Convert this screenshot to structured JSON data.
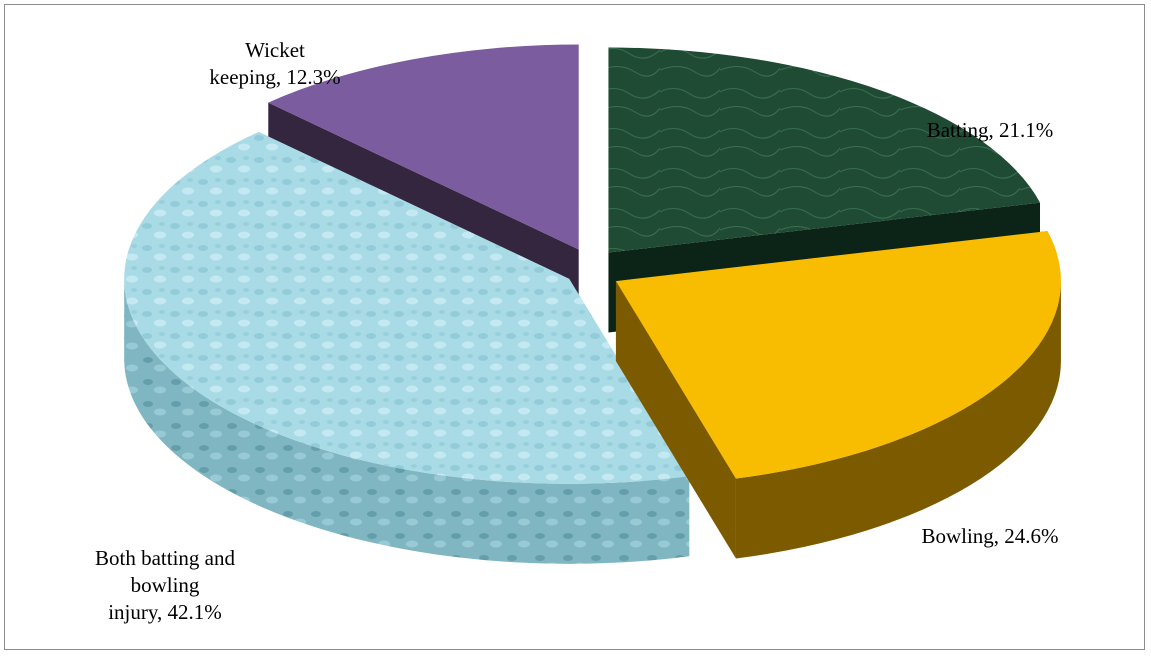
{
  "chart_data": {
    "type": "pie",
    "title": "",
    "slices": [
      {
        "label": "Batting, 21.1%",
        "category": "Batting",
        "value": 21.1,
        "color": "#1f4a33",
        "side_color": "#0c2418"
      },
      {
        "label": "Bowling, 24.6%",
        "category": "Bowling",
        "value": 24.6,
        "color": "#f8bc00",
        "side_color": "#7c5a00"
      },
      {
        "label": "Both batting and bowling injury, 42.1%",
        "category": "Both batting and bowling injury",
        "value": 42.1,
        "color": "#a9dbe6",
        "side_color": "#6fa6b2"
      },
      {
        "label": "Wicket keeping, 12.3%",
        "category": "Wicket keeping",
        "value": 12.3,
        "color": "#7b5c9e",
        "side_color": "#352640"
      }
    ],
    "legend": "none",
    "exploded": true,
    "style": "3d"
  }
}
